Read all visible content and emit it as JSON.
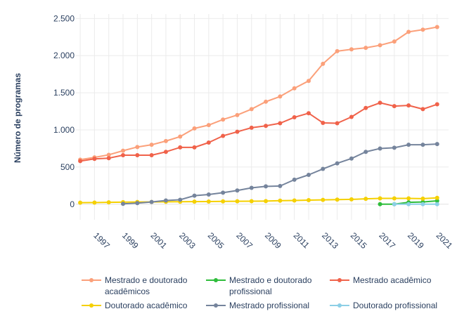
{
  "chart_data": {
    "type": "line",
    "title": "",
    "xlabel": "",
    "ylabel": "Número de programas",
    "x": [
      1996,
      1997,
      1998,
      1999,
      2000,
      2001,
      2002,
      2003,
      2004,
      2005,
      2006,
      2007,
      2008,
      2009,
      2010,
      2011,
      2012,
      2013,
      2014,
      2015,
      2016,
      2017,
      2018,
      2019,
      2020,
      2021
    ],
    "xlim": [
      1995.7,
      2021.8
    ],
    "ylim": [
      -210,
      2560
    ],
    "x_ticks": [
      1997,
      1999,
      2001,
      2003,
      2005,
      2007,
      2009,
      2011,
      2013,
      2015,
      2017,
      2019,
      2021
    ],
    "x_tick_labels": [
      "1997",
      "1999",
      "2001",
      "2003",
      "2005",
      "2007",
      "2009",
      "2011",
      "2013",
      "2015",
      "2017",
      "2019",
      "2021"
    ],
    "y_ticks": [
      0,
      500,
      1000,
      1500,
      2000,
      2500
    ],
    "y_tick_labels": [
      "0",
      "500",
      "1.000",
      "1.500",
      "2.000",
      "2.500"
    ],
    "grid": true,
    "legend_position": "bottom",
    "series": [
      {
        "name": "Mestrado e doutorado acadêmicos",
        "color": "#fba07a",
        "values": [
          600,
          630,
          665,
          720,
          770,
          800,
          850,
          910,
          1020,
          1065,
          1140,
          1200,
          1280,
          1380,
          1450,
          1560,
          1660,
          1890,
          2060,
          2085,
          2105,
          2140,
          2190,
          2320,
          2350,
          2385
        ]
      },
      {
        "name": "Mestrado e doutorado profissional",
        "color": "#2ebd3b",
        "values": [
          null,
          null,
          null,
          null,
          null,
          null,
          null,
          null,
          null,
          null,
          null,
          null,
          null,
          null,
          null,
          null,
          null,
          null,
          null,
          null,
          null,
          0,
          0,
          25,
          30,
          45
        ]
      },
      {
        "name": "Mestrado acadêmico",
        "color": "#f0624a",
        "values": [
          580,
          610,
          620,
          660,
          660,
          660,
          705,
          765,
          765,
          830,
          920,
          975,
          1030,
          1055,
          1090,
          1170,
          1225,
          1095,
          1090,
          1175,
          1295,
          1365,
          1320,
          1330,
          1280,
          1345
        ]
      },
      {
        "name": "Doutorado acadêmico",
        "color": "#f5d000",
        "values": [
          20,
          22,
          25,
          28,
          30,
          30,
          32,
          33,
          35,
          36,
          38,
          39,
          40,
          42,
          48,
          50,
          55,
          58,
          62,
          65,
          72,
          78,
          78,
          78,
          75,
          85
        ]
      },
      {
        "name": "Mestrado profissional",
        "color": "#75849c",
        "values": [
          null,
          null,
          null,
          5,
          15,
          30,
          50,
          60,
          115,
          130,
          155,
          185,
          220,
          240,
          245,
          330,
          395,
          475,
          550,
          615,
          705,
          750,
          760,
          800,
          800,
          810
        ]
      },
      {
        "name": "Doutorado profissional",
        "color": "#8ccfe6",
        "values": [
          null,
          null,
          null,
          null,
          null,
          null,
          null,
          null,
          null,
          null,
          null,
          null,
          null,
          null,
          null,
          null,
          null,
          null,
          null,
          null,
          null,
          null,
          0,
          0,
          0,
          0
        ]
      }
    ]
  }
}
